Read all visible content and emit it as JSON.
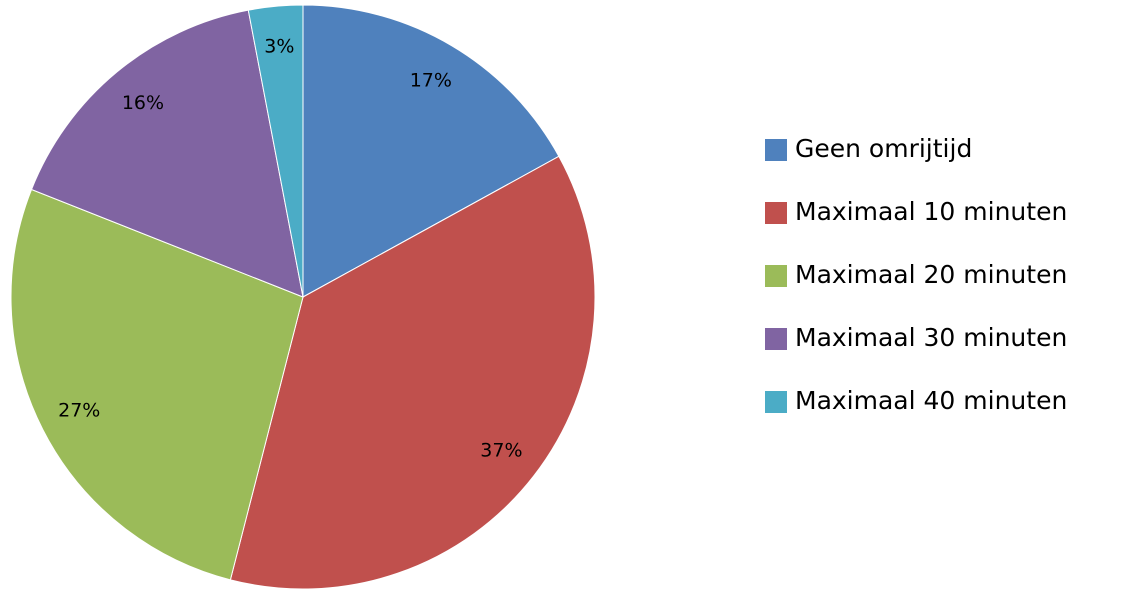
{
  "chart_data": {
    "type": "pie",
    "categories": [
      "Geen omrijtijd",
      "Maximaal 10 minuten",
      "Maximaal 20 minuten",
      "Maximaal 30 minuten",
      "Maximaal 40 minuten"
    ],
    "values": [
      17,
      37,
      27,
      16,
      3
    ],
    "value_labels": [
      "17%",
      "37%",
      "27%",
      "16%",
      "3%"
    ],
    "colors": [
      "#4f81bd",
      "#c0504d",
      "#9bbb59",
      "#8064a2",
      "#4bacc6"
    ],
    "legend": "right"
  }
}
